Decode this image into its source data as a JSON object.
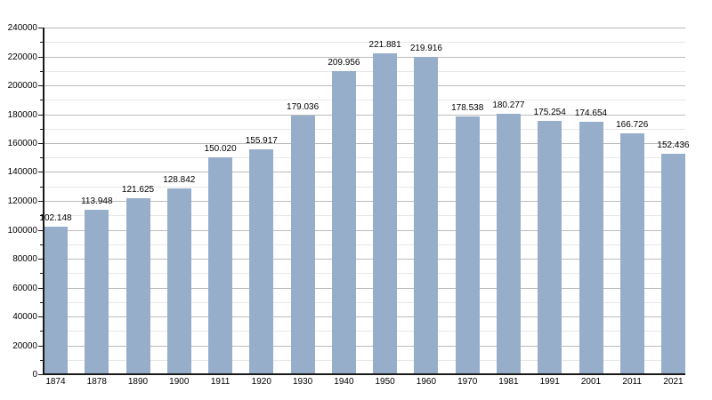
{
  "chart_data": {
    "type": "bar",
    "categories": [
      "1874",
      "1878",
      "1890",
      "1900",
      "1911",
      "1920",
      "1930",
      "1940",
      "1950",
      "1960",
      "1970",
      "1981",
      "1991",
      "2001",
      "2011",
      "2021"
    ],
    "values": [
      102148,
      113948,
      121625,
      128842,
      150020,
      155917,
      179036,
      209956,
      221881,
      219916,
      178538,
      180277,
      175254,
      174654,
      166726,
      152436
    ],
    "values_formatted": [
      "102.148",
      "113.948",
      "121.625",
      "128.842",
      "150.020",
      "155.917",
      "179.036",
      "209.956",
      "221.881",
      "219.916",
      "178.538",
      "180.277",
      "175.254",
      "174.654",
      "166.726",
      "152.436"
    ],
    "y_tick_labels": [
      "0",
      "20000",
      "40000",
      "60000",
      "80000",
      "100000",
      "120000",
      "140000",
      "160000",
      "180000",
      "200000",
      "220000",
      "240000"
    ],
    "ylim": [
      0,
      240000
    ],
    "y_major_step": 20000,
    "y_minor_step": 10000,
    "grid": "on",
    "legend": "none",
    "colors": {
      "bar": "#96AECA",
      "grid_major": "#bbbbbb",
      "grid_minor": "#e7e7e7",
      "axis": "#1a1a1a",
      "text": "#000000",
      "background": "#ffffff"
    }
  }
}
